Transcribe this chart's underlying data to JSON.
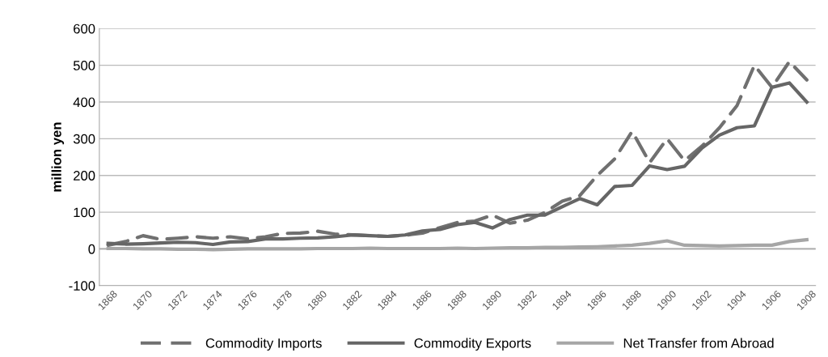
{
  "chart_data": {
    "type": "line",
    "ylabel": "million yen",
    "categories": [
      "1868",
      null,
      "1870",
      null,
      "1872",
      null,
      "1874",
      null,
      "1876",
      null,
      "1878",
      null,
      "1880",
      null,
      "1882",
      null,
      "1884",
      null,
      "1886",
      null,
      "1888",
      null,
      "1890",
      null,
      "1892",
      null,
      "1894",
      null,
      "1896",
      null,
      "1898",
      null,
      "1900",
      null,
      "1902",
      null,
      "1904",
      null,
      "1906",
      null,
      "1908"
    ],
    "series": [
      {
        "name": "Commodity Imports",
        "color": "#707070",
        "line_style": "dashed",
        "values": [
          10,
          20,
          36,
          26,
          29,
          33,
          29,
          33,
          27,
          33,
          42,
          43,
          48,
          40,
          38,
          36,
          34,
          37,
          43,
          58,
          72,
          76,
          92,
          70,
          78,
          99,
          130,
          145,
          200,
          245,
          320,
          235,
          300,
          240,
          280,
          330,
          390,
          500,
          440,
          510,
          460
        ]
      },
      {
        "name": "Commodity Exports",
        "color": "#666666",
        "line_style": "solid",
        "values": [
          15,
          13,
          14,
          16,
          18,
          17,
          12,
          19,
          20,
          27,
          27,
          29,
          30,
          33,
          38,
          36,
          34,
          38,
          49,
          53,
          66,
          72,
          57,
          80,
          92,
          92,
          115,
          137,
          120,
          170,
          173,
          226,
          216,
          225,
          275,
          310,
          330,
          335,
          440,
          452,
          400
        ]
      },
      {
        "name": "Net Transfer from Abroad",
        "color": "#a6a6a6",
        "line_style": "solid",
        "values": [
          1,
          1,
          0,
          0,
          -1,
          -1,
          -2,
          -1,
          0,
          0,
          0,
          0,
          1,
          1,
          1,
          2,
          1,
          1,
          1,
          1,
          2,
          1,
          2,
          3,
          3,
          4,
          4,
          5,
          6,
          8,
          10,
          15,
          22,
          10,
          9,
          8,
          9,
          10,
          10,
          20,
          25
        ]
      }
    ],
    "ylim": [
      -100,
      600
    ],
    "yticks": [
      -100,
      0,
      100,
      200,
      300,
      400,
      500,
      600
    ],
    "grid": "y",
    "legend": "bottom",
    "marker": "none"
  }
}
